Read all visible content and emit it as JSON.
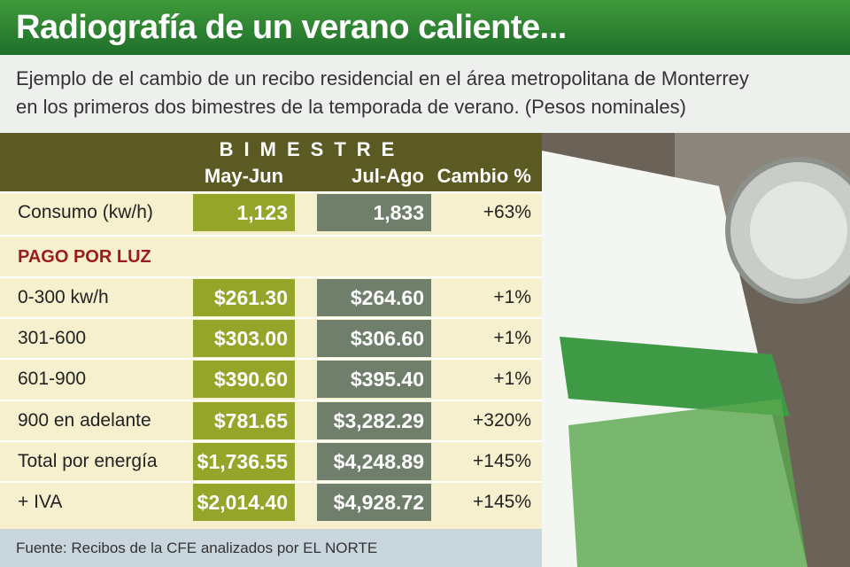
{
  "header": {
    "title": "Radiografía de un verano caliente...",
    "subtitle": [
      "Ejemplo de el cambio de un recibo residencial en el área metropolitana de Monterrey",
      "en los primeros dos bimestres de la temporada de verano. (Pesos nominales)"
    ]
  },
  "table": {
    "group_header": "BIMESTRE",
    "columns": [
      "May-Jun",
      "Jul-Ago",
      "Cambio %"
    ],
    "rows": [
      [
        "Consumo (kw/h)",
        "1,123",
        "1,833",
        "+63%"
      ]
    ],
    "section": {
      "title": "PAGO POR LUZ",
      "rows": [
        [
          "0-300 kw/h",
          "$261.30",
          "$264.60",
          "+1%"
        ],
        [
          "301-600",
          "$303.00",
          "$306.60",
          "+1%"
        ],
        [
          "601-900",
          "$390.60",
          "$395.40",
          "+1%"
        ],
        [
          "900 en adelante",
          "$781.65",
          "$3,282.29",
          "+320%"
        ],
        [
          "Total por energía",
          "$1,736.55",
          "$4,248.89",
          "+145%"
        ],
        [
          "+ IVA",
          "$2,014.40",
          "$4,928.72",
          "+145%"
        ]
      ]
    }
  },
  "footer": {
    "source": "Fuente: Recibos de la CFE analizados por EL NORTE"
  }
}
